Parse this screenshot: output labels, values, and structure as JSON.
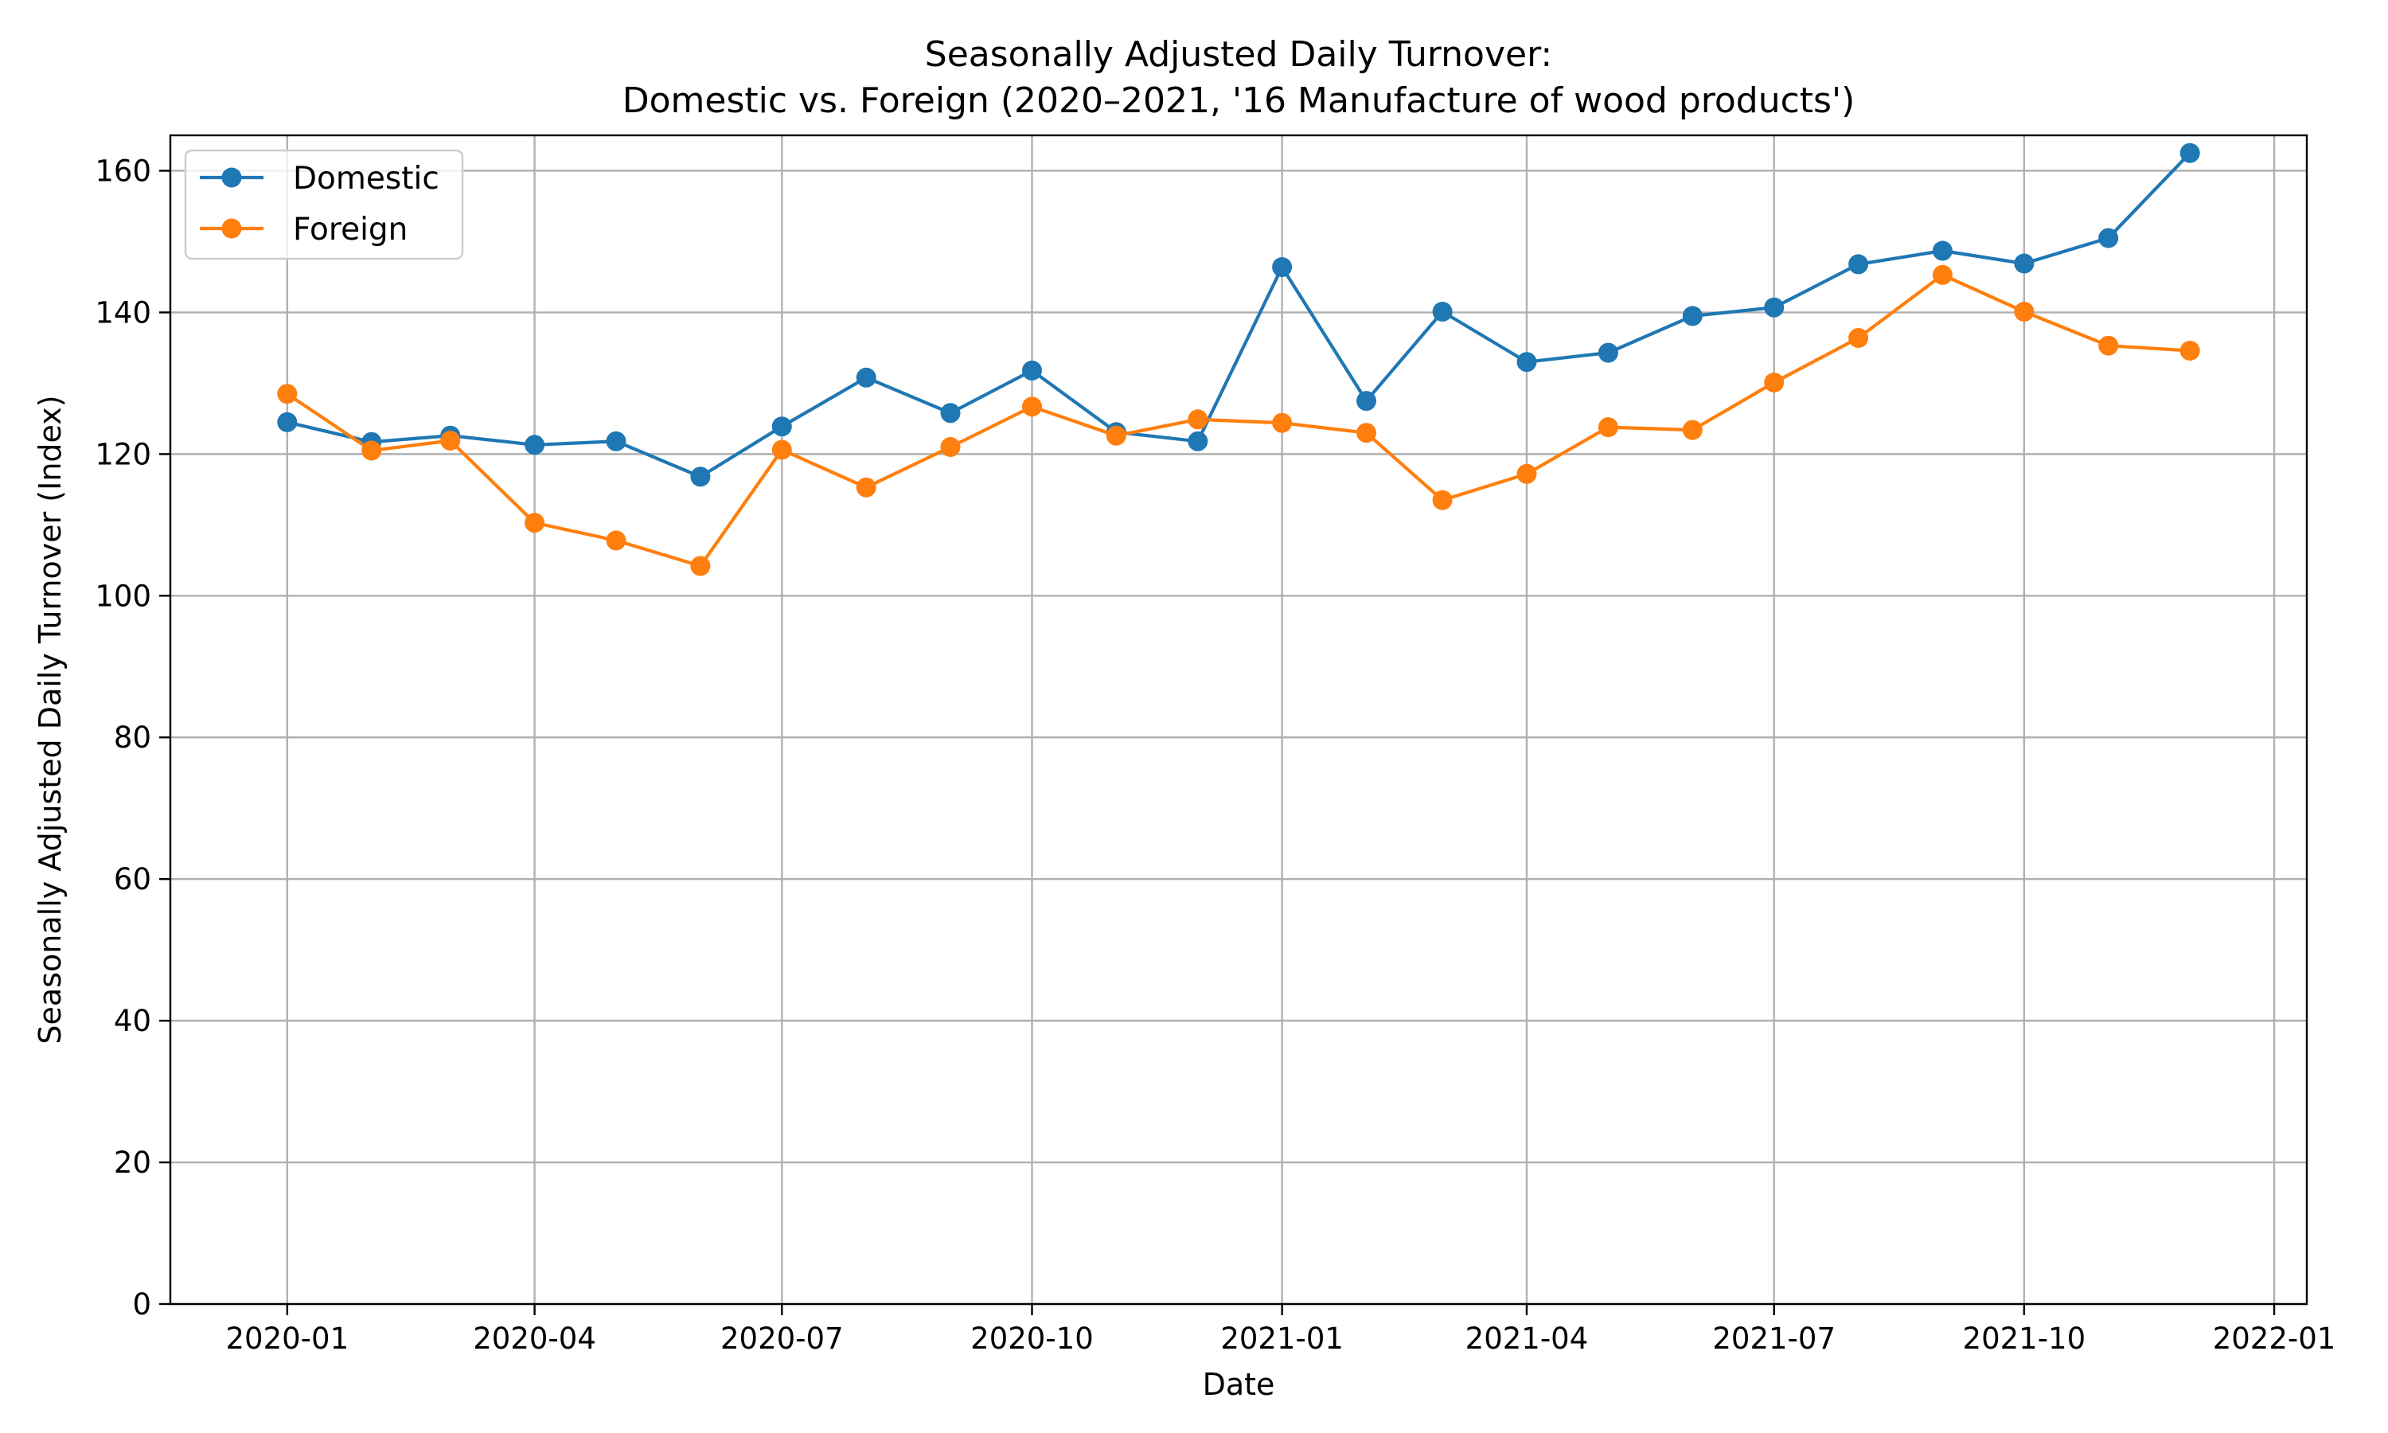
{
  "chart_data": {
    "type": "line",
    "title_line1": "Seasonally Adjusted Daily Turnover:",
    "title_line2": "Domestic vs. Foreign (2020–2021, '16 Manufacture of wood products')",
    "xlabel": "Date",
    "ylabel": "Seasonally Adjusted Daily Turnover (Index)",
    "x": [
      "2020-01-01",
      "2020-02-01",
      "2020-03-01",
      "2020-04-01",
      "2020-05-01",
      "2020-06-01",
      "2020-07-01",
      "2020-08-01",
      "2020-09-01",
      "2020-10-01",
      "2020-11-01",
      "2020-12-01",
      "2021-01-01",
      "2021-02-01",
      "2021-03-01",
      "2021-04-01",
      "2021-05-01",
      "2021-06-01",
      "2021-07-01",
      "2021-08-01",
      "2021-09-01",
      "2021-10-01",
      "2021-11-01",
      "2021-12-01"
    ],
    "xlim": [
      "2019-11-19",
      "2022-01-13"
    ],
    "ylim": [
      0,
      165
    ],
    "xticks": [
      {
        "date": "2020-01-01",
        "label": "2020-01"
      },
      {
        "date": "2020-04-01",
        "label": "2020-04"
      },
      {
        "date": "2020-07-01",
        "label": "2020-07"
      },
      {
        "date": "2020-10-01",
        "label": "2020-10"
      },
      {
        "date": "2021-01-01",
        "label": "2021-01"
      },
      {
        "date": "2021-04-01",
        "label": "2021-04"
      },
      {
        "date": "2021-07-01",
        "label": "2021-07"
      },
      {
        "date": "2021-10-01",
        "label": "2021-10"
      },
      {
        "date": "2022-01-01",
        "label": "2022-01"
      }
    ],
    "yticks": [
      {
        "value": 0,
        "label": "0"
      },
      {
        "value": 20,
        "label": "20"
      },
      {
        "value": 40,
        "label": "40"
      },
      {
        "value": 60,
        "label": "60"
      },
      {
        "value": 80,
        "label": "80"
      },
      {
        "value": 100,
        "label": "100"
      },
      {
        "value": 120,
        "label": "120"
      },
      {
        "value": 140,
        "label": "140"
      },
      {
        "value": 160,
        "label": "160"
      }
    ],
    "grid": true,
    "legend_position": "top-left",
    "series": [
      {
        "name": "Domestic",
        "color": "#1f77b4",
        "values": [
          124.5,
          121.7,
          122.6,
          121.3,
          121.8,
          116.8,
          123.9,
          130.8,
          125.8,
          131.8,
          123.1,
          121.8,
          146.4,
          127.5,
          140.1,
          133.0,
          134.3,
          139.5,
          140.7,
          146.8,
          148.7,
          146.9,
          150.5,
          162.5
        ]
      },
      {
        "name": "Foreign",
        "color": "#ff7f0e",
        "values": [
          128.5,
          120.5,
          121.9,
          110.3,
          107.8,
          104.2,
          120.6,
          115.3,
          121.0,
          126.7,
          122.6,
          124.9,
          124.4,
          123.0,
          113.5,
          117.2,
          123.8,
          123.4,
          130.1,
          136.4,
          145.3,
          140.1,
          135.3,
          134.6
        ]
      }
    ]
  }
}
